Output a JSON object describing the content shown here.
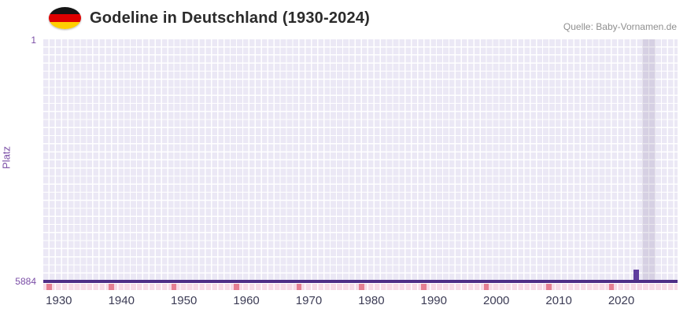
{
  "header": {
    "title": "Godeline in Deutschland (1930-2024)",
    "source": "Quelle: Baby-Vornamen.de",
    "flag_icon": "german-flag"
  },
  "chart_data": {
    "type": "line",
    "title": "Godeline in Deutschland (1930-2024)",
    "xlabel": "",
    "ylabel": "Platz",
    "y_axis": {
      "top_label": "1",
      "bottom_label": "5884",
      "min": 1,
      "max": 5884,
      "inverted": true
    },
    "x_ticks": [
      1930,
      1940,
      1950,
      1960,
      1970,
      1980,
      1990,
      2000,
      2010,
      2020
    ],
    "x_domain_rendered": [
      1927.5,
      2029
    ],
    "grid": "on",
    "legend": "none",
    "baseline": {
      "value": 5884,
      "meaning": "rank line across all years"
    },
    "series": [
      {
        "name": "Platz",
        "points": [
          {
            "x": 2022,
            "y": 5600
          }
        ]
      }
    ],
    "axis_marker_years": [
      1928,
      1938,
      1948,
      1958,
      1968,
      1978,
      1988,
      1998,
      2008,
      2018
    ],
    "highlight_band": {
      "from": 2023.3,
      "to": 2025.5
    },
    "colors": {
      "accent_line": "#4f2f87",
      "bar": "#5f3d9e",
      "grid_cell": "#ebe8f5",
      "band_overlay": "rgba(103,86,134,0.16)",
      "marker_light": "#f7dbe6",
      "marker_dark": "#e57f92",
      "x_label": "#3c3c55",
      "y_label": "#7a4da6",
      "flag_black": "#141414",
      "flag_red": "#dd0000",
      "flag_gold": "#ffce00"
    }
  }
}
